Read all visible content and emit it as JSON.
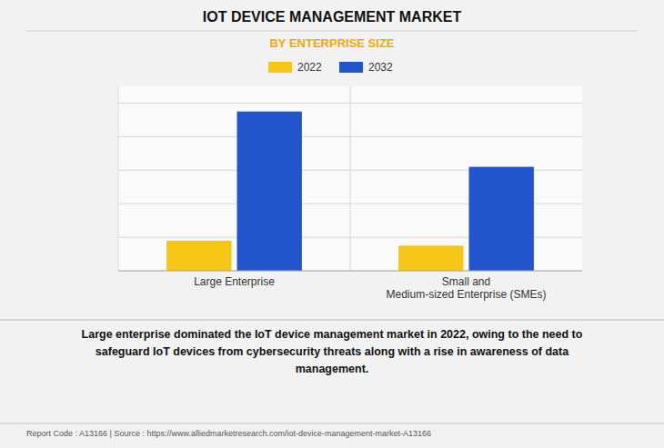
{
  "chart_data": {
    "type": "bar",
    "title": "IOT DEVICE MANAGEMENT MARKET",
    "subtitle": "BY ENTERPRISE SIZE",
    "categories": [
      "Large Enterprise",
      "Small and\nMedium-sized Enterprise (SMEs)"
    ],
    "series": [
      {
        "name": "2022",
        "color": "#F5C518",
        "values": [
          1.8,
          1.5
        ]
      },
      {
        "name": "2032",
        "color": "#2255CC",
        "values": [
          9.5,
          6.2
        ]
      }
    ],
    "ylim": [
      0,
      11
    ],
    "yticks": [
      0,
      2,
      4,
      6,
      8,
      10
    ],
    "grid": true,
    "tick_labels": "x",
    "legend": "top",
    "annotations": [
      "Large enterprise dominated the IoT device management market in 2022, owing to the need to\nsafeguard IoT devices from cybersecurity threats along with a rise in awareness of data\nmanagement.",
      "Report Code : A13166  |  Source : https://www.alliedmarketresearch.com/iot-device-management-market-A13166"
    ]
  }
}
